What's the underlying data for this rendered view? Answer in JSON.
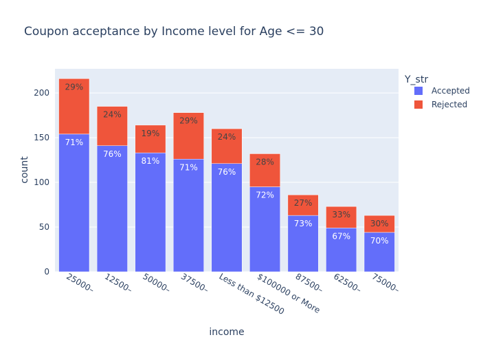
{
  "chart_data": {
    "type": "bar",
    "barmode": "stack",
    "title": "Coupon acceptance by Income level for Age <= 30",
    "xlabel": "income",
    "ylabel": "count",
    "ylim": [
      0,
      227
    ],
    "y_ticks": [
      0,
      50,
      100,
      150,
      200
    ],
    "categories": [
      "25000–",
      "12500–",
      "50000–",
      "37500–",
      "Less than $12500",
      "$100000 or More",
      "87500–",
      "62500–",
      "75000–"
    ],
    "legend": {
      "title": "Y_str",
      "position": "top-right"
    },
    "series": [
      {
        "name": "Accepted",
        "color": "#636efa",
        "label_color": "#ffffff",
        "values": [
          154,
          141,
          133,
          126,
          121,
          95,
          63,
          49,
          44
        ],
        "labels": [
          "71%",
          "76%",
          "81%",
          "71%",
          "76%",
          "72%",
          "73%",
          "67%",
          "70%"
        ]
      },
      {
        "name": "Rejected",
        "color": "#ef553b",
        "label_color": "#444444",
        "values": [
          62,
          44,
          31,
          52,
          39,
          37,
          23,
          24,
          19
        ],
        "labels": [
          "29%",
          "24%",
          "19%",
          "29%",
          "24%",
          "28%",
          "27%",
          "33%",
          "30%"
        ]
      }
    ],
    "plot_bg": "#e5ecf6",
    "grid": true
  }
}
